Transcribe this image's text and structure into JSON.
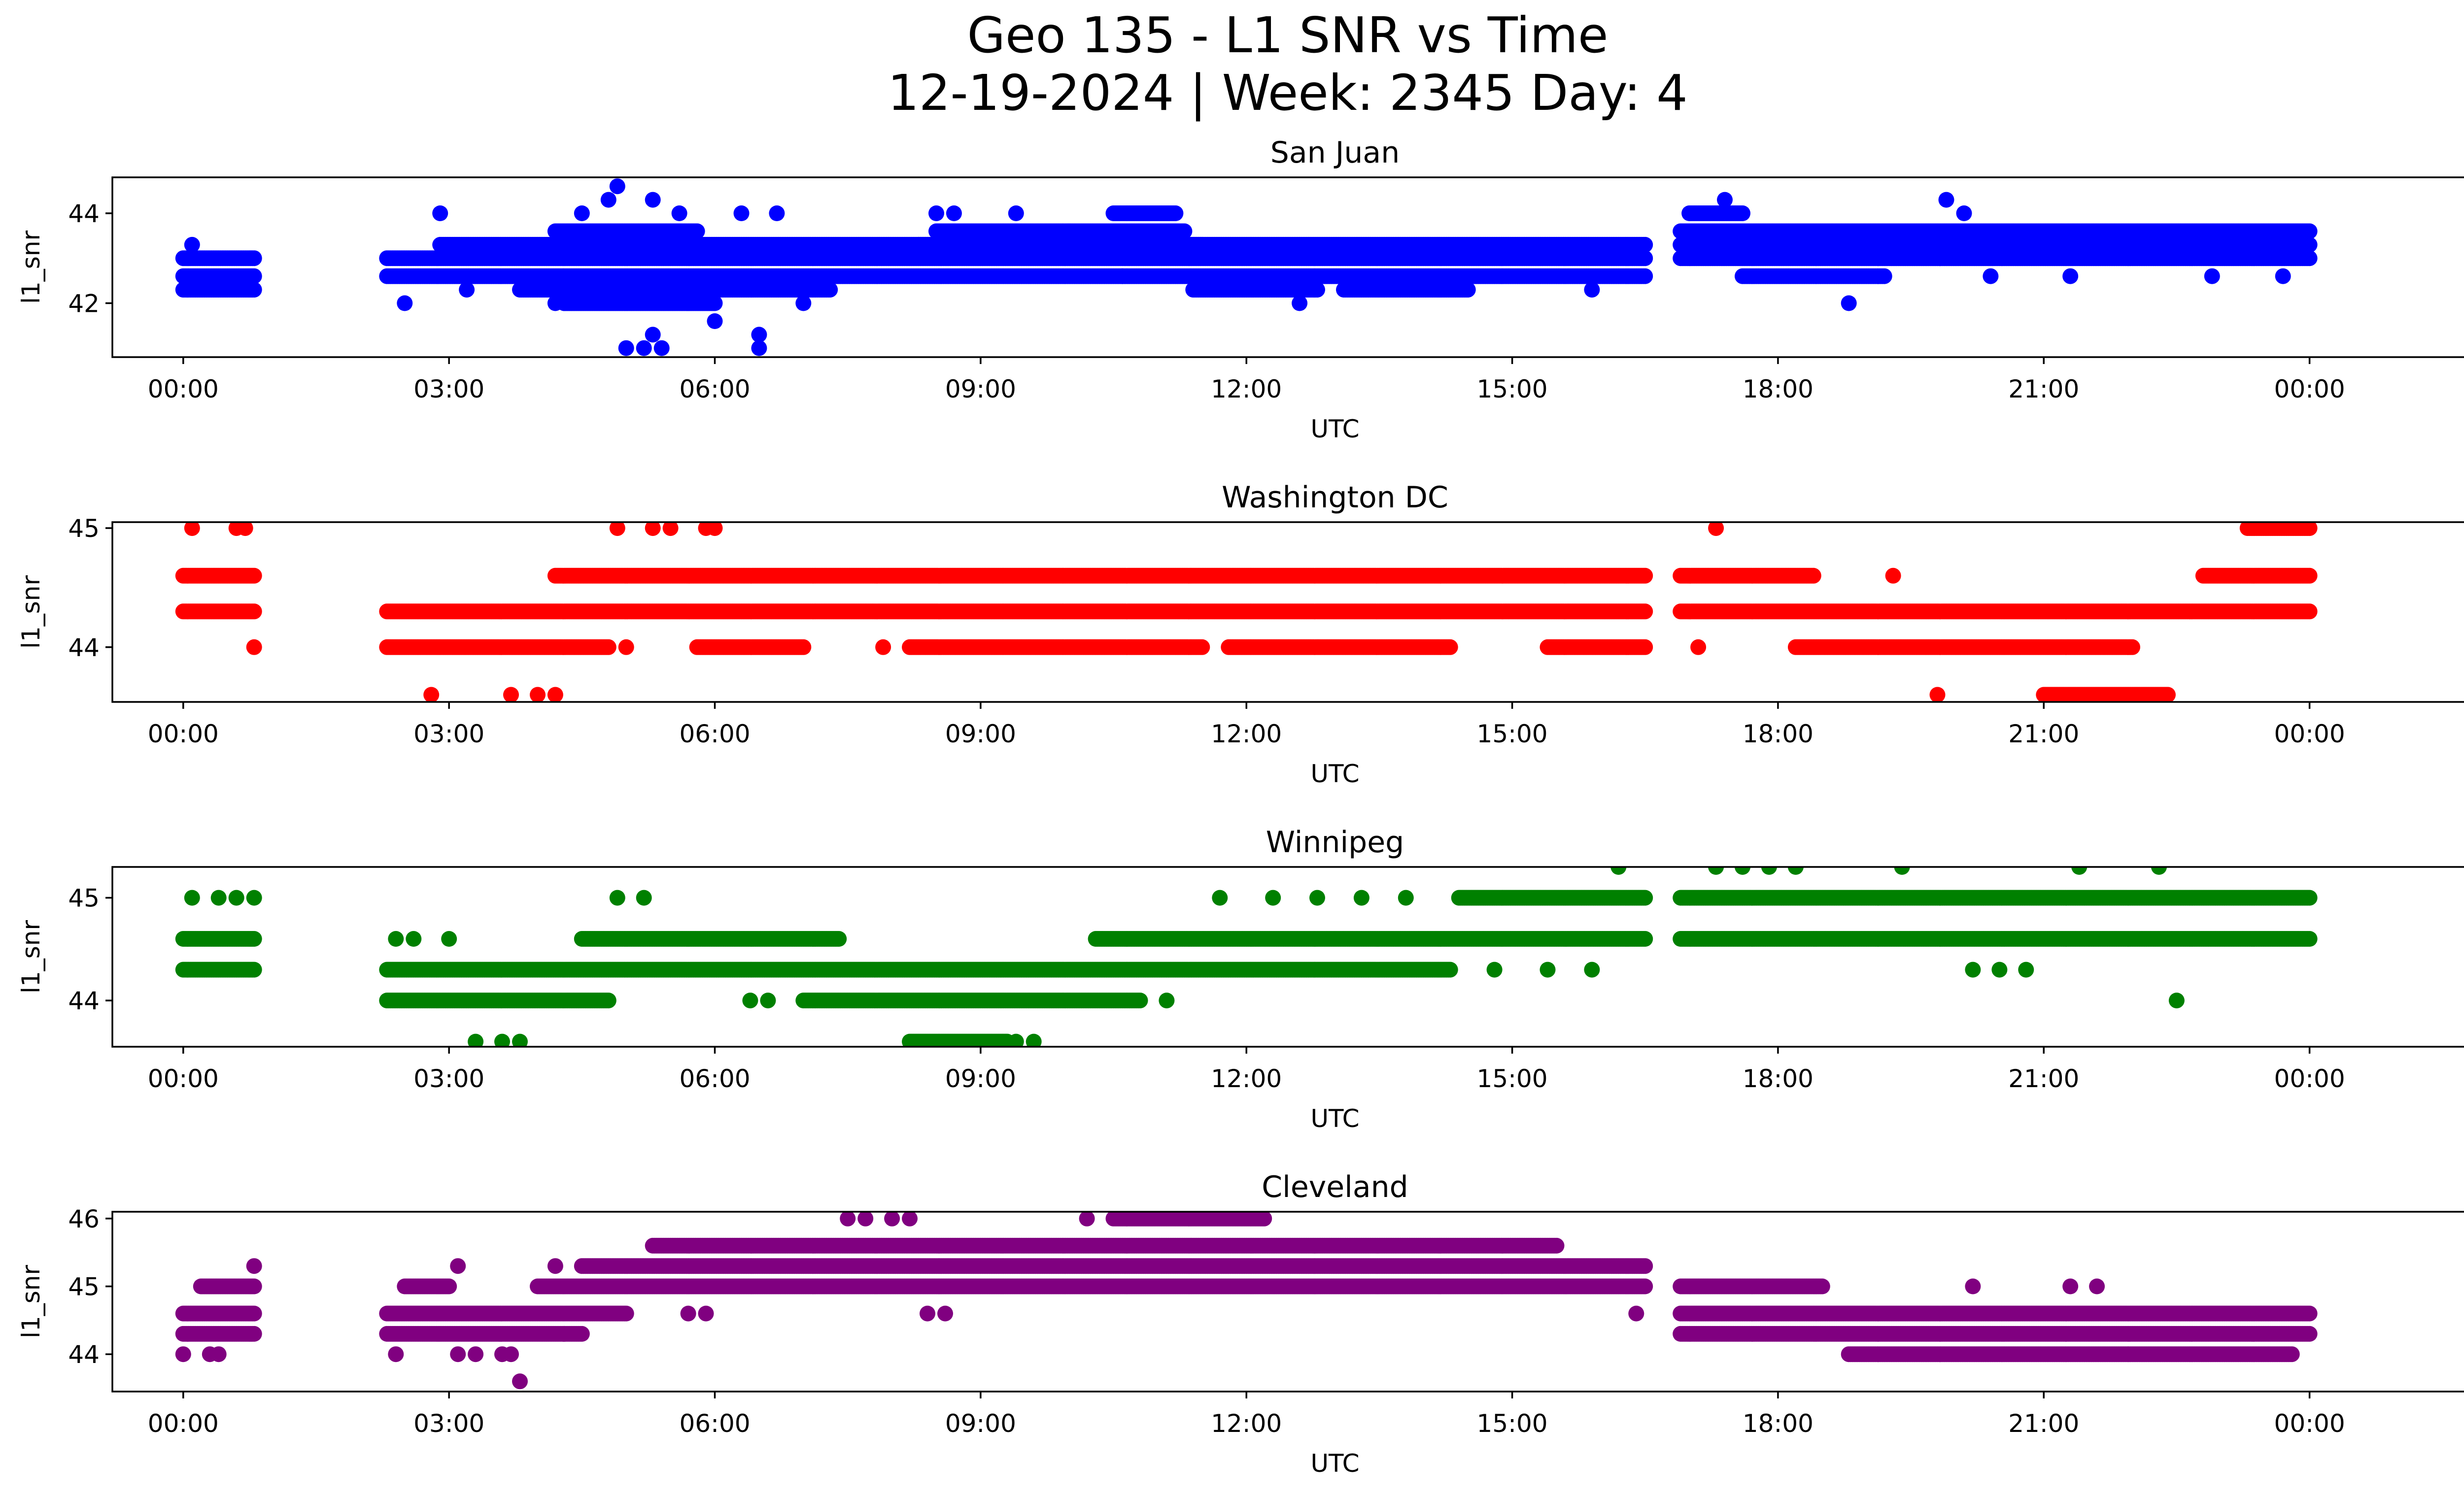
{
  "figure": {
    "title_line1": "Geo 135 - L1 SNR vs Time",
    "title_line2": "12-19-2024 | Week: 2345 Day: 4"
  },
  "chart_data": [
    {
      "type": "scatter",
      "title": "San Juan",
      "xlabel": "UTC",
      "ylabel": "l1_snr",
      "color": "#0000ff",
      "xlim": [
        -0.8,
        26.8
      ],
      "ylim": [
        40.8,
        44.8
      ],
      "xticks": [
        "00:00",
        "03:00",
        "06:00",
        "09:00",
        "12:00",
        "15:00",
        "18:00",
        "21:00",
        "00:00"
      ],
      "yticks": [
        42,
        44
      ],
      "levels": [
        42.0,
        42.3,
        42.6,
        43.0,
        43.3,
        43.6,
        44.0,
        44.3,
        44.6
      ],
      "bands": [
        [
          0.0,
          0.8,
          42.3
        ],
        [
          0.0,
          0.8,
          42.6
        ],
        [
          0.0,
          0.8,
          43.0
        ],
        [
          2.3,
          16.5,
          42.6
        ],
        [
          2.3,
          16.5,
          43.0
        ],
        [
          2.9,
          16.5,
          43.3
        ],
        [
          3.8,
          7.3,
          42.3
        ],
        [
          4.3,
          6.0,
          42.0
        ],
        [
          4.2,
          5.8,
          43.6
        ],
        [
          8.3,
          9.5,
          43.3
        ],
        [
          8.5,
          10.0,
          43.6
        ],
        [
          10.0,
          11.5,
          43.3
        ],
        [
          10.0,
          11.3,
          43.6
        ],
        [
          10.5,
          11.2,
          44.0
        ],
        [
          11.4,
          12.8,
          42.3
        ],
        [
          13.1,
          14.5,
          42.3
        ],
        [
          16.9,
          24.0,
          43.0
        ],
        [
          16.9,
          24.0,
          43.3
        ],
        [
          16.9,
          24.0,
          43.6
        ],
        [
          17.0,
          17.6,
          44.0
        ],
        [
          17.6,
          19.2,
          42.6
        ]
      ],
      "isolated": [
        [
          0.1,
          43.3
        ],
        [
          2.5,
          42.0
        ],
        [
          2.9,
          44.0
        ],
        [
          3.2,
          42.3
        ],
        [
          4.2,
          42.0
        ],
        [
          4.5,
          44.0
        ],
        [
          4.8,
          44.3
        ],
        [
          4.9,
          44.6
        ],
        [
          5.0,
          41.0
        ],
        [
          5.2,
          41.0
        ],
        [
          5.3,
          44.3
        ],
        [
          5.3,
          41.3
        ],
        [
          5.4,
          41.0
        ],
        [
          5.6,
          44.0
        ],
        [
          6.0,
          41.6
        ],
        [
          6.3,
          44.0
        ],
        [
          6.5,
          41.3
        ],
        [
          6.5,
          41.0
        ],
        [
          6.7,
          44.0
        ],
        [
          7.0,
          42.0
        ],
        [
          8.5,
          44.0
        ],
        [
          8.7,
          44.0
        ],
        [
          9.4,
          44.0
        ],
        [
          10.6,
          42.6
        ],
        [
          12.6,
          42.0
        ],
        [
          15.9,
          42.3
        ],
        [
          17.4,
          44.3
        ],
        [
          18.8,
          42.0
        ],
        [
          19.9,
          44.3
        ],
        [
          20.1,
          44.0
        ],
        [
          20.4,
          42.6
        ],
        [
          21.3,
          42.6
        ],
        [
          22.9,
          42.6
        ],
        [
          23.7,
          42.6
        ]
      ]
    },
    {
      "type": "scatter",
      "title": "Washington DC",
      "xlabel": "UTC",
      "ylabel": "l1_snr",
      "color": "#ff0000",
      "xlim": [
        -0.8,
        26.8
      ],
      "ylim": [
        43.54,
        45.05
      ],
      "xticks": [
        "00:00",
        "03:00",
        "06:00",
        "09:00",
        "12:00",
        "15:00",
        "18:00",
        "21:00",
        "00:00"
      ],
      "yticks": [
        44,
        45
      ],
      "levels": [
        43.6,
        44.0,
        44.3,
        44.6,
        45.0
      ],
      "bands": [
        [
          0.0,
          0.8,
          44.3
        ],
        [
          0.0,
          0.8,
          44.6
        ],
        [
          2.3,
          16.5,
          44.3
        ],
        [
          2.3,
          4.8,
          44.0
        ],
        [
          4.2,
          16.5,
          44.6
        ],
        [
          5.8,
          7.0,
          44.0
        ],
        [
          8.2,
          11.5,
          44.0
        ],
        [
          11.8,
          14.3,
          44.0
        ],
        [
          15.4,
          16.5,
          44.0
        ],
        [
          16.9,
          24.0,
          44.3
        ],
        [
          16.9,
          18.4,
          44.6
        ],
        [
          18.2,
          22.0,
          44.0
        ],
        [
          22.8,
          24.0,
          44.6
        ],
        [
          21.0,
          22.4,
          43.6
        ],
        [
          23.3,
          24.0,
          45.0
        ]
      ],
      "isolated": [
        [
          0.1,
          45.0
        ],
        [
          0.6,
          45.0
        ],
        [
          0.7,
          45.0
        ],
        [
          0.8,
          44.0
        ],
        [
          2.8,
          43.6
        ],
        [
          3.7,
          43.6
        ],
        [
          4.0,
          43.6
        ],
        [
          4.2,
          43.6
        ],
        [
          5.0,
          44.0
        ],
        [
          4.9,
          45.0
        ],
        [
          5.3,
          45.0
        ],
        [
          5.5,
          45.0
        ],
        [
          5.9,
          45.0
        ],
        [
          6.0,
          45.0
        ],
        [
          7.9,
          44.0
        ],
        [
          17.1,
          44.0
        ],
        [
          17.3,
          45.0
        ],
        [
          19.3,
          44.6
        ],
        [
          19.8,
          43.6
        ]
      ]
    },
    {
      "type": "scatter",
      "title": "Winnipeg",
      "xlabel": "UTC",
      "ylabel": "l1_snr",
      "color": "#008000",
      "xlim": [
        -0.8,
        26.8
      ],
      "ylim": [
        43.55,
        45.3
      ],
      "xticks": [
        "00:00",
        "03:00",
        "06:00",
        "09:00",
        "12:00",
        "15:00",
        "18:00",
        "21:00",
        "00:00"
      ],
      "yticks": [
        44,
        45
      ],
      "levels": [
        43.6,
        44.0,
        44.3,
        44.6,
        45.0,
        45.3
      ],
      "bands": [
        [
          0.0,
          0.8,
          44.3
        ],
        [
          0.0,
          0.8,
          44.6
        ],
        [
          2.3,
          14.3,
          44.3
        ],
        [
          4.5,
          7.4,
          44.6
        ],
        [
          2.3,
          4.8,
          44.0
        ],
        [
          7.0,
          10.8,
          44.0
        ],
        [
          10.3,
          16.5,
          44.6
        ],
        [
          14.4,
          16.5,
          45.0
        ],
        [
          16.9,
          24.0,
          44.6
        ],
        [
          16.9,
          24.0,
          45.0
        ],
        [
          8.2,
          9.3,
          43.6
        ]
      ],
      "isolated": [
        [
          0.1,
          45.0
        ],
        [
          0.4,
          45.0
        ],
        [
          0.6,
          45.0
        ],
        [
          0.8,
          45.0
        ],
        [
          2.4,
          44.6
        ],
        [
          2.6,
          44.6
        ],
        [
          3.0,
          44.6
        ],
        [
          3.3,
          43.6
        ],
        [
          3.6,
          43.6
        ],
        [
          3.8,
          43.6
        ],
        [
          4.9,
          45.0
        ],
        [
          5.2,
          45.0
        ],
        [
          6.4,
          44.0
        ],
        [
          6.6,
          44.0
        ],
        [
          9.4,
          43.6
        ],
        [
          9.6,
          43.6
        ],
        [
          11.1,
          44.0
        ],
        [
          11.7,
          45.0
        ],
        [
          12.3,
          45.0
        ],
        [
          12.8,
          45.0
        ],
        [
          13.3,
          45.0
        ],
        [
          13.8,
          45.0
        ],
        [
          14.8,
          44.3
        ],
        [
          15.4,
          44.3
        ],
        [
          15.9,
          44.3
        ],
        [
          16.2,
          45.3
        ],
        [
          17.3,
          45.3
        ],
        [
          17.6,
          45.3
        ],
        [
          17.9,
          45.3
        ],
        [
          18.2,
          45.3
        ],
        [
          19.4,
          45.3
        ],
        [
          20.2,
          44.3
        ],
        [
          20.5,
          44.3
        ],
        [
          20.8,
          44.3
        ],
        [
          21.4,
          45.3
        ],
        [
          22.3,
          45.3
        ],
        [
          22.5,
          44.0
        ]
      ]
    },
    {
      "type": "scatter",
      "title": "Cleveland",
      "xlabel": "UTC",
      "ylabel": "l1_snr",
      "color": "#800080",
      "xlim": [
        -0.8,
        26.8
      ],
      "ylim": [
        43.45,
        46.1
      ],
      "xticks": [
        "00:00",
        "03:00",
        "06:00",
        "09:00",
        "12:00",
        "15:00",
        "18:00",
        "21:00",
        "00:00"
      ],
      "yticks": [
        44,
        45,
        46
      ],
      "levels": [
        43.6,
        44.0,
        44.3,
        44.6,
        45.0,
        45.3,
        45.6,
        46.0
      ],
      "bands": [
        [
          0.0,
          0.8,
          44.3
        ],
        [
          0.0,
          0.8,
          44.6
        ],
        [
          0.2,
          0.8,
          45.0
        ],
        [
          2.3,
          5.0,
          44.6
        ],
        [
          2.3,
          4.5,
          44.3
        ],
        [
          2.5,
          3.0,
          45.0
        ],
        [
          4.0,
          16.5,
          45.0
        ],
        [
          4.5,
          16.5,
          45.3
        ],
        [
          5.3,
          15.5,
          45.6
        ],
        [
          10.5,
          12.2,
          46.0
        ],
        [
          16.9,
          24.0,
          44.6
        ],
        [
          16.9,
          24.0,
          44.3
        ],
        [
          16.9,
          18.5,
          45.0
        ],
        [
          18.8,
          23.8,
          44.0
        ]
      ],
      "isolated": [
        [
          0.0,
          44.0
        ],
        [
          0.3,
          44.0
        ],
        [
          0.4,
          44.0
        ],
        [
          0.8,
          45.3
        ],
        [
          2.4,
          44.0
        ],
        [
          3.1,
          45.3
        ],
        [
          3.1,
          44.0
        ],
        [
          3.3,
          44.0
        ],
        [
          3.6,
          44.0
        ],
        [
          3.7,
          44.0
        ],
        [
          3.8,
          43.6
        ],
        [
          4.2,
          45.3
        ],
        [
          4.3,
          44.3
        ],
        [
          5.7,
          44.6
        ],
        [
          5.9,
          44.6
        ],
        [
          7.5,
          46.0
        ],
        [
          7.7,
          46.0
        ],
        [
          8.0,
          46.0
        ],
        [
          8.2,
          46.0
        ],
        [
          8.4,
          44.6
        ],
        [
          8.6,
          44.6
        ],
        [
          10.2,
          46.0
        ],
        [
          16.4,
          44.6
        ],
        [
          20.2,
          45.0
        ],
        [
          21.3,
          45.0
        ],
        [
          21.6,
          45.0
        ]
      ]
    }
  ]
}
